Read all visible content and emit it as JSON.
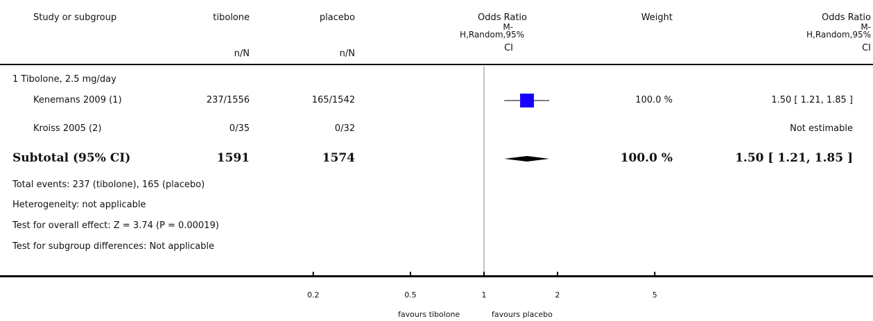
{
  "header": {
    "study": "Study or subgroup",
    "group1": "tibolone",
    "group2": "placebo",
    "group1_sub": "n/N",
    "group2_sub": "n/N",
    "or_title": "Odds Ratio",
    "or_sub1": "M-",
    "or_sub2": "H,Random,95%",
    "or_sub3": "CI",
    "weight": "Weight",
    "or2_title": "Odds Ratio",
    "or2_sub1": "M-",
    "or2_sub2": "H,Random,95%",
    "or2_sub3": "CI"
  },
  "subgroup": {
    "title": "1 Tibolone, 2.5 mg/day",
    "studies": [
      {
        "name": "Kenemans 2009 (1)",
        "g1": "237/1556",
        "g2": "165/1542",
        "weight": "100.0 %",
        "ci": "1.50 [ 1.21, 1.85 ]"
      },
      {
        "name": "Kroiss 2005 (2)",
        "g1": "0/35",
        "g2": "0/32",
        "weight": "",
        "ci": "Not estimable"
      }
    ],
    "subtotal": {
      "label": "Subtotal (95% CI)",
      "g1": "1591",
      "g2": "1574",
      "weight": "100.0 %",
      "ci": "1.50 [ 1.21, 1.85 ]"
    },
    "notes": [
      "Total events: 237 (tibolone), 165 (placebo)",
      "Heterogeneity: not applicable",
      "Test for overall effect: Z = 3.74 (P = 0.00019)",
      "Test for subgroup differences: Not applicable"
    ]
  },
  "axis": {
    "ticks": [
      "0.2",
      "0.5",
      "1",
      "2",
      "5"
    ],
    "left_label": "favours tibolone",
    "right_label": "favours placebo"
  },
  "chart_data": {
    "type": "forest",
    "scale": "log",
    "xlim": [
      0.2,
      5
    ],
    "null_value": 1,
    "ticks": [
      0.2,
      0.5,
      1,
      2,
      5
    ],
    "studies": [
      {
        "name": "Kenemans 2009 (1)",
        "or": 1.5,
        "lower": 1.21,
        "upper": 1.85,
        "weight": 100.0
      },
      {
        "name": "Kroiss 2005 (2)",
        "or": null,
        "lower": null,
        "upper": null,
        "weight": null
      }
    ],
    "pooled": {
      "name": "Subtotal (95% CI)",
      "or": 1.5,
      "lower": 1.21,
      "upper": 1.85
    },
    "colors": {
      "study_box": "#1a00ff",
      "diamond": "#000000"
    }
  }
}
